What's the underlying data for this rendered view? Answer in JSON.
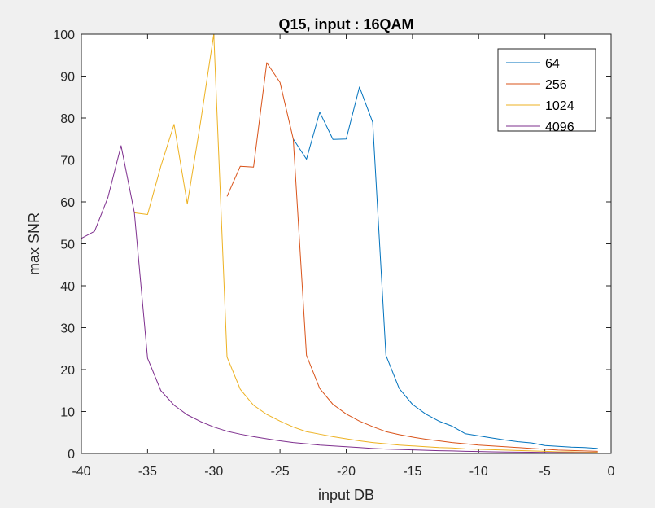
{
  "chart_data": {
    "type": "line",
    "title": "Q15, input : 16QAM",
    "xlabel": "input DB",
    "ylabel": "max SNR",
    "xlim": [
      -40,
      0
    ],
    "ylim": [
      0,
      100
    ],
    "xticks": [
      -40,
      -35,
      -30,
      -25,
      -20,
      -15,
      -10,
      -5,
      0
    ],
    "yticks": [
      0,
      10,
      20,
      30,
      40,
      50,
      60,
      70,
      80,
      90,
      100
    ],
    "grid": false,
    "legend_position": "top-right",
    "series": [
      {
        "name": "64",
        "color": "#0072BD",
        "x": [
          -24,
          -23,
          -22,
          -21,
          -20,
          -19,
          -18,
          -17,
          -16,
          -15,
          -14,
          -13,
          -12,
          -11,
          -10,
          -9,
          -8,
          -7,
          -6,
          -5,
          -4,
          -3,
          -2,
          -1
        ],
        "y": [
          75,
          70.2,
          81.4,
          74.9,
          75,
          87.4,
          79,
          23.4,
          15.5,
          11.7,
          9.4,
          7.7,
          6.5,
          4.7,
          4.2,
          3.7,
          3.2,
          2.8,
          2.5,
          1.9,
          1.7,
          1.5,
          1.4,
          1.2
        ]
      },
      {
        "name": "256",
        "color": "#D95319",
        "x": [
          -29,
          -28,
          -27,
          -26,
          -25,
          -24,
          -23,
          -22,
          -21,
          -20,
          -19,
          -18,
          -17,
          -16,
          -15,
          -14,
          -13,
          -12,
          -11,
          -10,
          -9,
          -8,
          -7,
          -6,
          -5,
          -4,
          -3,
          -2,
          -1
        ],
        "y": [
          61.3,
          68.5,
          68.3,
          93.2,
          88.5,
          75,
          23.4,
          15.5,
          11.7,
          9.4,
          7.7,
          6.4,
          5.2,
          4.5,
          3.9,
          3.4,
          3.0,
          2.6,
          2.3,
          2.0,
          1.8,
          1.6,
          1.4,
          1.2,
          1.0,
          0.8,
          0.7,
          0.6,
          0.5
        ]
      },
      {
        "name": "1024",
        "color": "#EDB120",
        "x": [
          -36,
          -35,
          -34,
          -33,
          -32,
          -31,
          -30,
          -29,
          -28,
          -27,
          -26,
          -25,
          -24,
          -23,
          -22,
          -21,
          -20,
          -19,
          -18,
          -17,
          -16,
          -15,
          -14,
          -13,
          -12,
          -11,
          -10,
          -9,
          -8,
          -7,
          -6,
          -5,
          -4,
          -3,
          -2,
          -1
        ],
        "y": [
          57.4,
          57,
          68.5,
          78.5,
          59.5,
          79,
          100,
          23,
          15.3,
          11.5,
          9.3,
          7.7,
          6.3,
          5.2,
          4.6,
          4.0,
          3.5,
          3.0,
          2.6,
          2.3,
          2.0,
          1.8,
          1.6,
          1.4,
          1.3,
          1.1,
          1.0,
          0.9,
          0.8,
          0.7,
          0.6,
          0.5,
          0.4,
          0.4,
          0.3,
          0.3
        ]
      },
      {
        "name": "4096",
        "color": "#7E2F8E",
        "x": [
          -40,
          -39,
          -38,
          -37,
          -36,
          -35,
          -34,
          -33,
          -32,
          -31,
          -30,
          -29,
          -28,
          -27,
          -26,
          -25,
          -24,
          -23,
          -22,
          -21,
          -20,
          -19,
          -18,
          -17,
          -16,
          -15,
          -14,
          -13,
          -12,
          -11,
          -10,
          -9,
          -8,
          -7,
          -6,
          -5,
          -4,
          -3,
          -2,
          -1
        ],
        "y": [
          51.3,
          53,
          61,
          73.4,
          57.5,
          22.7,
          15,
          11.5,
          9.2,
          7.6,
          6.3,
          5.3,
          4.6,
          4.0,
          3.5,
          3.0,
          2.6,
          2.3,
          2.0,
          1.8,
          1.6,
          1.4,
          1.2,
          1.05,
          0.95,
          0.85,
          0.75,
          0.65,
          0.6,
          0.5,
          0.45,
          0.4,
          0.35,
          0.32,
          0.28,
          0.25,
          0.22,
          0.2,
          0.18,
          0.15
        ]
      }
    ]
  }
}
